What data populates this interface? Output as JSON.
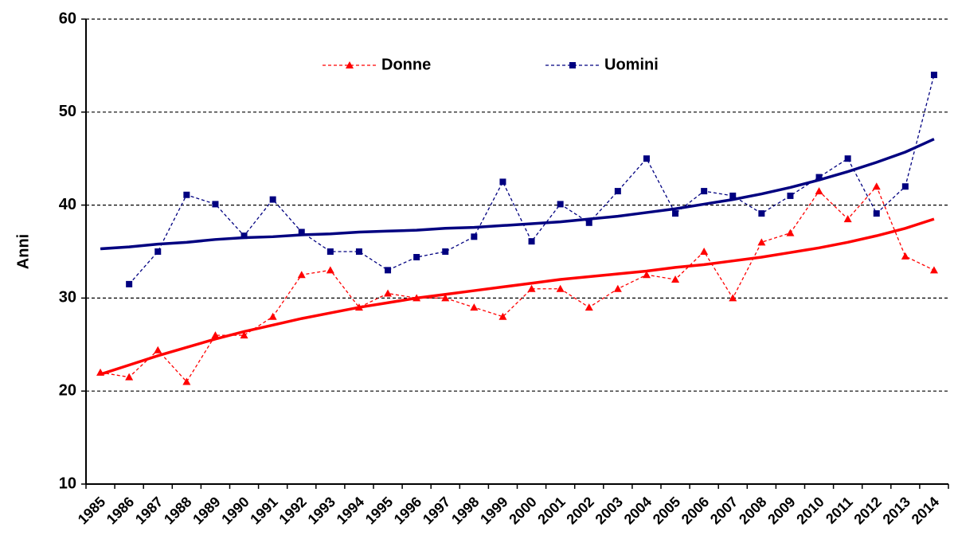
{
  "chart_data": {
    "type": "line",
    "y_label": "Anni",
    "categories": [
      "1985",
      "1986",
      "1987",
      "1988",
      "1989",
      "1990",
      "1991",
      "1992",
      "1993",
      "1994",
      "1995",
      "1996",
      "1997",
      "1998",
      "1999",
      "2000",
      "2001",
      "2002",
      "2003",
      "2004",
      "2005",
      "2006",
      "2007",
      "2008",
      "2009",
      "2010",
      "2011",
      "2012",
      "2013",
      "2014"
    ],
    "series": [
      {
        "name": "Donne",
        "color": "#ff0000",
        "marker": "triangle",
        "values": [
          22,
          21.5,
          24.4,
          21,
          26,
          26,
          28,
          32.5,
          33,
          29,
          30.5,
          30,
          30,
          29,
          28,
          31,
          31,
          29,
          31,
          32.5,
          32,
          35,
          30,
          36,
          37,
          41.5,
          38.5,
          42,
          34.5,
          33
        ],
        "trend": [
          21.8,
          22.8,
          23.8,
          24.7,
          25.6,
          26.4,
          27.1,
          27.8,
          28.4,
          29.0,
          29.5,
          30.0,
          30.4,
          30.8,
          31.2,
          31.6,
          32.0,
          32.3,
          32.6,
          32.9,
          33.3,
          33.6,
          34.0,
          34.4,
          34.9,
          35.4,
          36.0,
          36.7,
          37.5,
          38.5
        ]
      },
      {
        "name": "Uomini",
        "color": "#000080",
        "marker": "square",
        "values": [
          null,
          31.5,
          35,
          41.1,
          40.1,
          36.7,
          40.6,
          37.1,
          35,
          35,
          33,
          34.4,
          35,
          36.6,
          42.5,
          36.1,
          40.1,
          38.1,
          41.5,
          45,
          39.1,
          41.5,
          41,
          39.1,
          41,
          43,
          45,
          39.1,
          42,
          54
        ],
        "trend": [
          35.3,
          35.5,
          35.8,
          36.0,
          36.3,
          36.5,
          36.6,
          36.8,
          36.9,
          37.1,
          37.2,
          37.3,
          37.5,
          37.6,
          37.8,
          38.0,
          38.2,
          38.5,
          38.8,
          39.2,
          39.6,
          40.1,
          40.6,
          41.2,
          41.9,
          42.7,
          43.6,
          44.6,
          45.7,
          47.1
        ]
      }
    ],
    "ylim": [
      10,
      60
    ],
    "yticks": [
      10,
      20,
      30,
      40,
      50,
      60
    ],
    "grid": true
  }
}
